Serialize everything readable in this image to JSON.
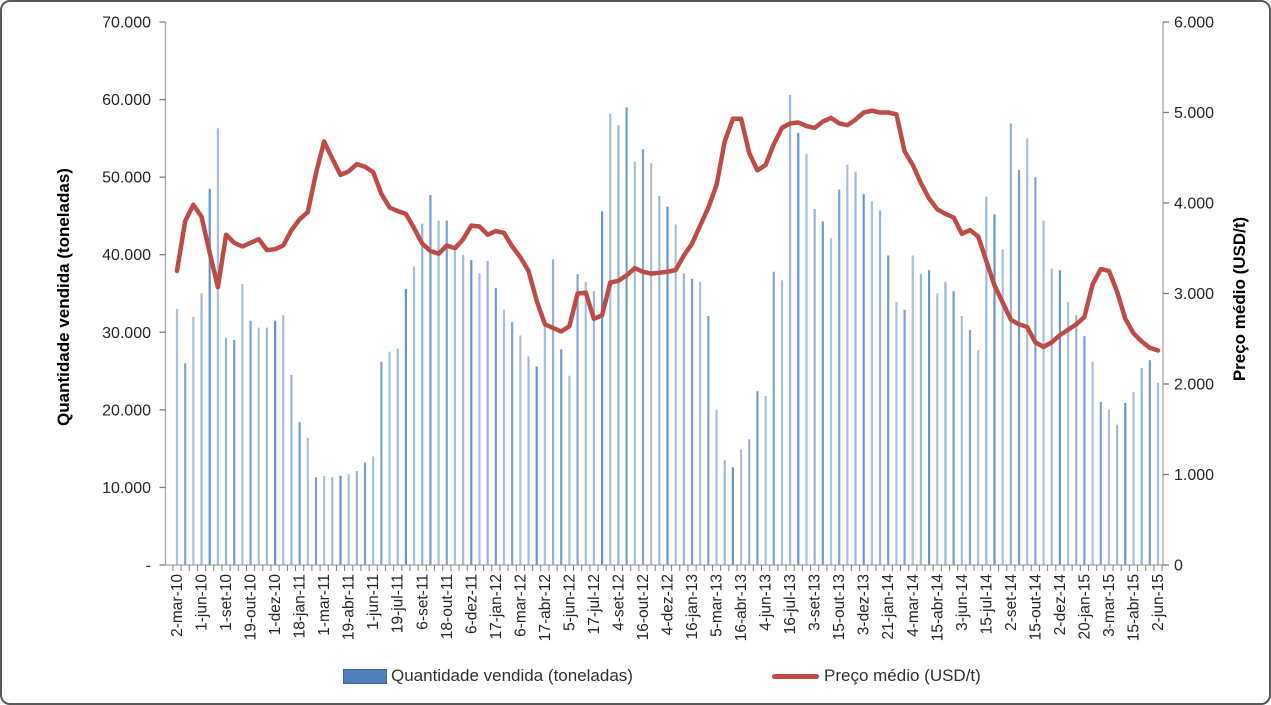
{
  "chart_data": {
    "type": "combo-bar-line",
    "title": "",
    "x_tick_labels": [
      "2-mar-10",
      "1-jun-10",
      "1-set-10",
      "19-out-10",
      "1-dez-10",
      "18-jan-11",
      "1-mar-11",
      "19-abr-11",
      "1-jun-11",
      "19-jul-11",
      "6-set-11",
      "18-out-11",
      "6-dez-11",
      "17-jan-12",
      "6-mar-12",
      "17-abr-12",
      "5-jun-12",
      "17-jul-12",
      "4-set-12",
      "16-out-12",
      "4-dez-12",
      "16-jan-13",
      "5-mar-13",
      "16-abr-13",
      "4-jun-13",
      "16-jul-13",
      "3-set-13",
      "15-out-13",
      "3-dez-13",
      "21-jan-14",
      "4-mar-14",
      "15-abr-14",
      "3-jun-14",
      "15-jul-14",
      "2-set-14",
      "15-out-14",
      "2-dez-14",
      "20-jan-15",
      "3-mar-15",
      "15-abr-15",
      "2-jun-15"
    ],
    "tick_label_interval": 3,
    "n_points": 121,
    "left_axis": {
      "title": "Quantidade vendida (toneladas)",
      "min": 0,
      "max": 70000,
      "step": 10000,
      "tick_labels": [
        "-",
        "10.000",
        "20.000",
        "30.000",
        "40.000",
        "50.000",
        "60.000",
        "70.000"
      ]
    },
    "right_axis": {
      "title": "Preço médio (USD/t)",
      "min": 0,
      "max": 6000,
      "step": 1000,
      "tick_labels": [
        "0",
        "1.000",
        "2.000",
        "3.000",
        "4.000",
        "5.000",
        "6.000"
      ]
    },
    "grid": "off",
    "legend_position": "bottom",
    "series": [
      {
        "name": "Quantidade vendida (toneladas)",
        "type": "bar",
        "axis": "left",
        "color": "#4F81BD",
        "values": [
          33000,
          26000,
          32000,
          35000,
          48500,
          56300,
          29300,
          29000,
          36200,
          31500,
          30600,
          30600,
          31500,
          32200,
          24500,
          18400,
          16400,
          11300,
          11500,
          11300,
          11500,
          11700,
          12100,
          13200,
          14000,
          26200,
          27500,
          27900,
          35600,
          38500,
          44000,
          47700,
          44400,
          44400,
          40500,
          40000,
          39300,
          37600,
          39200,
          35700,
          32900,
          31300,
          29600,
          26900,
          25600,
          31200,
          39400,
          27800,
          24400,
          37500,
          36500,
          35300,
          45600,
          58200,
          56700,
          59000,
          52000,
          53600,
          51800,
          47600,
          46200,
          43900,
          37600,
          36900,
          36500,
          32100,
          20000,
          13500,
          12600,
          14900,
          16200,
          22400,
          21800,
          37800,
          36700,
          60600,
          55700,
          53000,
          45900,
          44300,
          42100,
          48400,
          51600,
          50700,
          47800,
          46900,
          45700,
          39900,
          33900,
          32900,
          39900,
          37500,
          38000,
          35000,
          36500,
          35300,
          32100,
          30300,
          27700,
          47500,
          45200,
          40700,
          56900,
          50900,
          55000,
          50000,
          44400,
          38200,
          38000,
          33900,
          32200,
          29500,
          26200,
          21000,
          20000,
          18100,
          20900,
          22300,
          25400,
          26400,
          23500
        ]
      },
      {
        "name": "Preço médio (USD/t)",
        "type": "line",
        "axis": "right",
        "color": "#BF4B47",
        "values": [
          3250,
          3800,
          3980,
          3850,
          3450,
          3070,
          3650,
          3560,
          3520,
          3560,
          3600,
          3480,
          3490,
          3530,
          3700,
          3820,
          3900,
          4330,
          4680,
          4490,
          4310,
          4350,
          4430,
          4400,
          4340,
          4100,
          3950,
          3910,
          3880,
          3720,
          3550,
          3470,
          3440,
          3530,
          3500,
          3600,
          3750,
          3740,
          3650,
          3690,
          3670,
          3520,
          3400,
          3250,
          2920,
          2660,
          2620,
          2580,
          2640,
          3000,
          3010,
          2720,
          2760,
          3120,
          3140,
          3200,
          3280,
          3240,
          3220,
          3230,
          3240,
          3260,
          3420,
          3550,
          3750,
          3950,
          4200,
          4680,
          4930,
          4930,
          4550,
          4360,
          4420,
          4650,
          4830,
          4880,
          4890,
          4850,
          4830,
          4900,
          4940,
          4880,
          4860,
          4920,
          5000,
          5020,
          5000,
          5000,
          4980,
          4570,
          4420,
          4220,
          4050,
          3930,
          3880,
          3840,
          3660,
          3700,
          3630,
          3360,
          3090,
          2900,
          2710,
          2660,
          2630,
          2460,
          2410,
          2460,
          2540,
          2600,
          2660,
          2740,
          3100,
          3270,
          3250,
          3020,
          2720,
          2560,
          2470,
          2400,
          2370
        ]
      }
    ],
    "colors": {
      "axis_line": "#A6A6A6",
      "tick_mark": "#7F7F7F",
      "tick_text": "#262626",
      "bar": "#4F81BD",
      "line": "#BF4B47"
    }
  }
}
